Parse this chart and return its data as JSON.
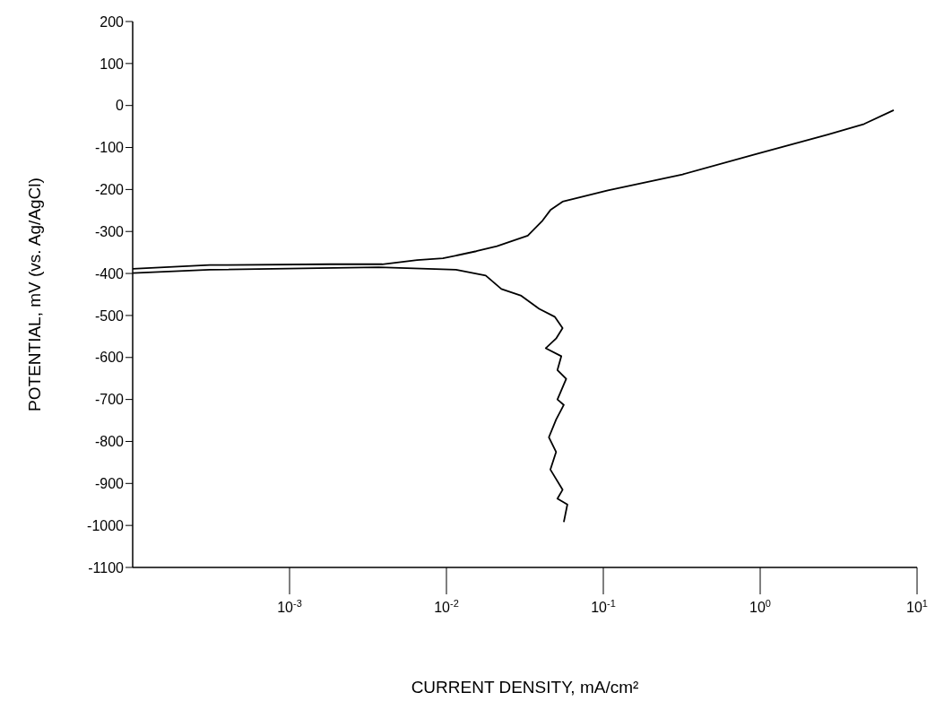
{
  "chart_data": {
    "type": "line",
    "xlabel": "CURRENT DENSITY, mA/cm²",
    "ylabel": "POTENTIAL, mV (vs. Ag/AgCl)",
    "log": "x",
    "xlim": [
      0.0001,
      10
    ],
    "xticks": [
      {
        "value": 0.001,
        "label": "10$^{-3}$"
      },
      {
        "value": 0.01,
        "label": "10$^{-2}$"
      },
      {
        "value": 0.1,
        "label": "10$^{-1}$"
      },
      {
        "value": 1,
        "label": "10$^{0}$"
      },
      {
        "value": 10,
        "label": "10$^{1}$"
      }
    ],
    "ylim": [
      -1100,
      200
    ],
    "yticks": [
      200,
      100,
      0,
      -100,
      -200,
      -300,
      -400,
      -500,
      -600,
      -700,
      -800,
      -900,
      -1000,
      -1100
    ],
    "grid": false,
    "marker": "none",
    "line_style": "solid",
    "series": [
      {
        "color": "#000000",
        "x": [
          0.0001,
          0.00031,
          0.0018,
          0.0039,
          0.0065,
          0.0095,
          0.0155,
          0.021,
          0.033,
          0.041,
          0.046,
          0.055,
          0.107,
          0.32,
          0.93,
          2.7,
          4.6,
          7.1
        ],
        "values": [
          -389,
          -380,
          -378,
          -378,
          -368,
          -364,
          -347,
          -335,
          -310,
          -274,
          -249,
          -229,
          -202,
          -164,
          -116,
          -69,
          -44,
          -11
        ]
      },
      {
        "color": "#000000",
        "x": [
          0.0001,
          0.00031,
          0.0037,
          0.0115,
          0.0178,
          0.0224,
          0.03,
          0.039,
          0.049,
          0.055,
          0.05,
          0.043,
          0.054,
          0.051,
          0.058,
          0.051,
          0.056,
          0.05,
          0.045,
          0.05,
          0.046,
          0.055,
          0.051,
          0.059,
          0.056
        ],
        "values": [
          -399,
          -391,
          -385,
          -391,
          -405,
          -437,
          -453,
          -484,
          -503,
          -530,
          -555,
          -578,
          -597,
          -630,
          -651,
          -700,
          -713,
          -748,
          -790,
          -825,
          -867,
          -915,
          -936,
          -950,
          -992
        ]
      }
    ]
  }
}
